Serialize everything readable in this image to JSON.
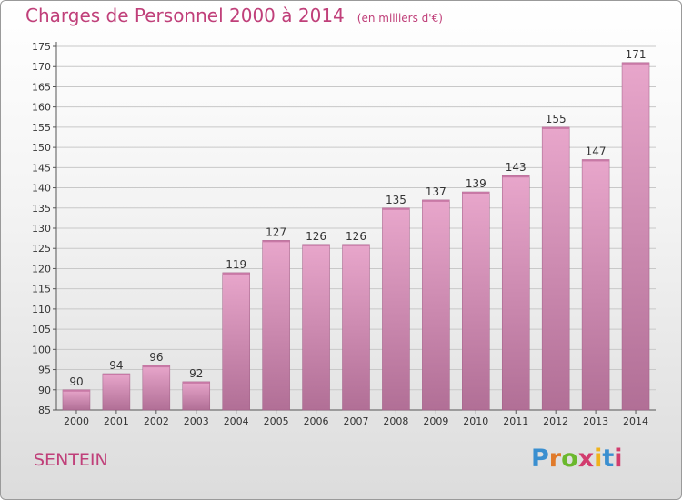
{
  "header": {
    "title": "Charges de Personnel 2000 à 2014",
    "unit": "(en milliers d'€)"
  },
  "footer": {
    "commune": "SENTEIN",
    "logo_text": "Proxiti"
  },
  "colors": {
    "title": "#c0407a",
    "bar_top": "#e8a6cb",
    "bar_bottom": "#b16f96",
    "grid": "#c8c8c8"
  },
  "chart_data": {
    "type": "bar",
    "title": "Charges de Personnel 2000 à 2014",
    "subtitle": "(en milliers d'€)",
    "categories": [
      "2000",
      "2001",
      "2002",
      "2003",
      "2004",
      "2005",
      "2006",
      "2007",
      "2008",
      "2009",
      "2010",
      "2011",
      "2012",
      "2013",
      "2014"
    ],
    "values": [
      90,
      94,
      96,
      92,
      119,
      127,
      126,
      126,
      135,
      137,
      139,
      143,
      155,
      147,
      171
    ],
    "ylim": [
      85,
      175
    ],
    "yticks": [
      85,
      90,
      95,
      100,
      105,
      110,
      115,
      120,
      125,
      130,
      135,
      140,
      145,
      150,
      155,
      160,
      165,
      170,
      175
    ],
    "grid": true,
    "legend": "none"
  }
}
